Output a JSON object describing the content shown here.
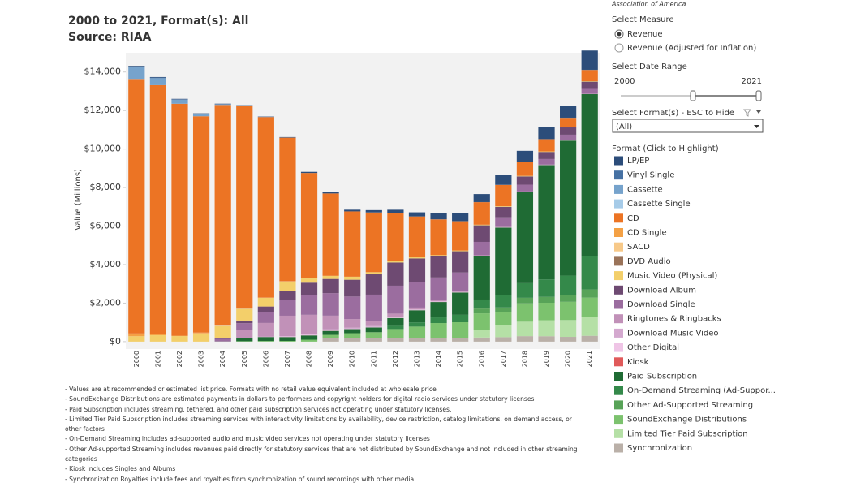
{
  "header": {
    "title": "2000 to 2021, Format(s): All",
    "subtitle": "Source: RIAA",
    "org_fragment": "Association of America"
  },
  "chart_data": {
    "type": "stacked_bar",
    "y_label": "Value (Millions)",
    "categories": [
      "2000",
      "2001",
      "2002",
      "2003",
      "2004",
      "2005",
      "2006",
      "2007",
      "2008",
      "2009",
      "2010",
      "2011",
      "2012",
      "2013",
      "2014",
      "2015",
      "2016",
      "2017",
      "2018",
      "2019",
      "2020",
      "2021"
    ],
    "ylim": [
      -300,
      15000
    ],
    "yticks": [
      {
        "value": 0,
        "label": "$0"
      },
      {
        "value": 2000,
        "label": "$2,000"
      },
      {
        "value": 4000,
        "label": "$4,000"
      },
      {
        "value": 6000,
        "label": "$6,000"
      },
      {
        "value": 8000,
        "label": "$8,000"
      },
      {
        "value": 10000,
        "label": "$10,000"
      },
      {
        "value": 12000,
        "label": "$12,000"
      },
      {
        "value": 14000,
        "label": "$14,000"
      }
    ],
    "grid": false,
    "series": [
      {
        "name": "LP/EP",
        "color": "#2c4d7a",
        "values": [
          28,
          27,
          21,
          22,
          20,
          14,
          16,
          23,
          57,
          57,
          88,
          118,
          165,
          211,
          315,
          413,
          416,
          496,
          583,
          620,
          620,
          1000
        ]
      },
      {
        "name": "Vinyl Single",
        "color": "#4671a3",
        "values": [
          26,
          31,
          25,
          21,
          21,
          13,
          11,
          4,
          3,
          3,
          2,
          4,
          4,
          4,
          6,
          6,
          5,
          7,
          6,
          6,
          7,
          8
        ]
      },
      {
        "name": "Cassette",
        "color": "#76a3cc",
        "values": [
          626,
          363,
          209,
          108,
          24,
          13,
          2,
          3,
          0,
          0,
          0,
          0,
          0,
          0,
          0,
          0,
          0,
          0,
          0,
          0,
          0,
          0
        ]
      },
      {
        "name": "Cassette Single",
        "color": "#a6cbe8",
        "values": [
          4,
          0,
          0,
          0,
          0,
          0,
          0,
          0,
          0,
          0,
          0,
          0,
          0,
          0,
          0,
          0,
          0,
          0,
          0,
          0,
          0,
          0
        ]
      },
      {
        "name": "CD",
        "color": "#ec7424",
        "values": [
          13215,
          12909,
          12044,
          11233,
          11447,
          10520,
          9373,
          7452,
          5471,
          4274,
          3389,
          3101,
          2486,
          2123,
          1856,
          1521,
          1169,
          1106,
          711,
          635,
          482,
          584
        ]
      },
      {
        "name": "CD Single",
        "color": "#f4a145",
        "values": [
          142,
          79,
          20,
          36,
          15,
          10,
          7,
          12,
          3,
          1,
          2,
          1,
          1,
          0,
          0,
          0,
          0,
          0,
          0,
          0,
          0,
          0
        ]
      },
      {
        "name": "SACD",
        "color": "#f7c989",
        "values": [
          0,
          0,
          0,
          26,
          24,
          9,
          4,
          3,
          1,
          1,
          1,
          1,
          0,
          0,
          0,
          0,
          0,
          0,
          0,
          0,
          0,
          0
        ]
      },
      {
        "name": "DVD Audio",
        "color": "#9a7359",
        "values": [
          0,
          0,
          0,
          8,
          7,
          3,
          2,
          1,
          1,
          0,
          0,
          0,
          0,
          0,
          0,
          0,
          0,
          0,
          0,
          0,
          0,
          0
        ]
      },
      {
        "name": "Music Video (Physical)",
        "color": "#f3cf6a",
        "values": [
          281,
          329,
          288,
          400,
          607,
          602,
          451,
          485,
          219,
          160,
          155,
          93,
          84,
          56,
          60,
          37,
          32,
          31,
          27,
          25,
          18,
          25
        ]
      },
      {
        "name": "Download Album",
        "color": "#6e4a72",
        "values": [
          0,
          0,
          0,
          0,
          46,
          136,
          275,
          492,
          635,
          735,
          872,
          1070,
          1204,
          1233,
          1101,
          1103,
          860,
          541,
          431,
          368,
          377,
          374
        ]
      },
      {
        "name": "Download Single",
        "color": "#9b6d9f",
        "values": [
          0,
          0,
          0,
          0,
          138,
          364,
          581,
          801,
          1034,
          1172,
          1172,
          1357,
          1451,
          1320,
          1171,
          957,
          692,
          496,
          352,
          291,
          290,
          258
        ]
      },
      {
        "name": "Ringtones & Ringbacks",
        "color": "#c191b8",
        "values": [
          0,
          0,
          0,
          0,
          0,
          422,
          714,
          1055,
          977,
          702,
          448,
          277,
          167,
          97,
          66,
          56,
          39,
          27,
          21,
          15,
          12,
          11
        ]
      },
      {
        "name": "Download Music Video",
        "color": "#d4a9cf",
        "values": [
          0,
          0,
          0,
          0,
          0,
          2,
          14,
          29,
          58,
          55,
          49,
          46,
          39,
          23,
          18,
          9,
          6,
          5,
          4,
          3,
          2,
          2
        ]
      },
      {
        "name": "Other Digital",
        "color": "#efc5e6",
        "values": [
          0,
          0,
          0,
          0,
          0,
          0,
          0,
          21,
          33,
          30,
          21,
          24,
          21,
          18,
          17,
          15,
          12,
          10,
          8,
          6,
          4,
          3
        ]
      },
      {
        "name": "Kiosk",
        "color": "#e05a5a",
        "values": [
          0,
          0,
          0,
          0,
          0,
          1,
          1,
          3,
          3,
          3,
          3,
          2,
          2,
          2,
          2,
          2,
          2,
          2,
          1,
          1,
          1,
          1
        ]
      },
      {
        "name": "Paid Subscription",
        "color": "#1f6b34",
        "values": [
          0,
          0,
          0,
          0,
          0,
          149,
          206,
          201,
          221,
          207,
          212,
          247,
          403,
          628,
          799,
          1160,
          2242,
          3484,
          4728,
          5935,
          7009,
          8392
        ]
      },
      {
        "name": "On-Demand Streaming (Ad-Suppor...",
        "color": "#34894a",
        "values": [
          0,
          0,
          0,
          0,
          0,
          0,
          0,
          0,
          0,
          0,
          0,
          0,
          170,
          220,
          295,
          385,
          469,
          660,
          759,
          908,
          1007,
          1749
        ]
      },
      {
        "name": "Other Ad-Supported Streaming",
        "color": "#58a358",
        "values": [
          0,
          0,
          0,
          0,
          0,
          0,
          0,
          0,
          0,
          0,
          0,
          0,
          0,
          0,
          0,
          0,
          251,
          251,
          289,
          305,
          353,
          426
        ]
      },
      {
        "name": "SoundExchange Distributions",
        "color": "#7cc26e",
        "values": [
          0,
          0,
          0,
          0,
          7,
          20,
          33,
          36,
          100,
          155,
          249,
          292,
          462,
          590,
          773,
          803,
          884,
          652,
          953,
          908,
          947,
          992
        ]
      },
      {
        "name": "Limited Tier Paid Subscription",
        "color": "#b5e0a6",
        "values": [
          0,
          0,
          0,
          0,
          0,
          0,
          0,
          0,
          0,
          0,
          0,
          0,
          0,
          0,
          0,
          0,
          368,
          640,
          749,
          829,
          873,
          988
        ]
      },
      {
        "name": "Synchronization",
        "color": "#bab0a8",
        "values": [
          0,
          0,
          0,
          0,
          0,
          0,
          0,
          0,
          0,
          196,
          188,
          196,
          190,
          190,
          190,
          203,
          215,
          232,
          285,
          281,
          247,
          303
        ]
      }
    ]
  },
  "panel": {
    "measure_title": "Select Measure",
    "measure_options": [
      "Revenue",
      "Revenue (Adjusted for Inflation)"
    ],
    "date_title": "Select Date Range",
    "date_start": "2000",
    "date_end": "2021",
    "format_title": "Select Format(s) - ESC to Hide",
    "format_value": "(All)",
    "legend_title": "Format (Click to Highlight)"
  },
  "footnotes": [
    "- Values are at recommended or estimated list price. Formats with no retail value equivalent included at wholesale price",
    "- SoundExchange Distributions are estimated payments in dollars to performers and copyright holders for digital radio services under statutory licenses",
    "- Paid Subscription includes streaming, tethered, and other paid subscription services not operating under statutory licenses.",
    "- Limited Tier Paid Subscription includes streaming services with interactivity limitations by availability, device restriction, catalog limitations, on demand access, or other factors",
    "- On-Demand Streaming includes ad-supported audio and music video services not operating under statutory licenses",
    "- Other Ad-supported Streaming includes revenues paid directly for statutory services that are not distributed by SoundExchange and not included in other streaming categories",
    "- Kiosk includes Singles and Albums",
    "- Synchronization Royalties include fees and royalties from synchronization of sound recordings with other media"
  ]
}
